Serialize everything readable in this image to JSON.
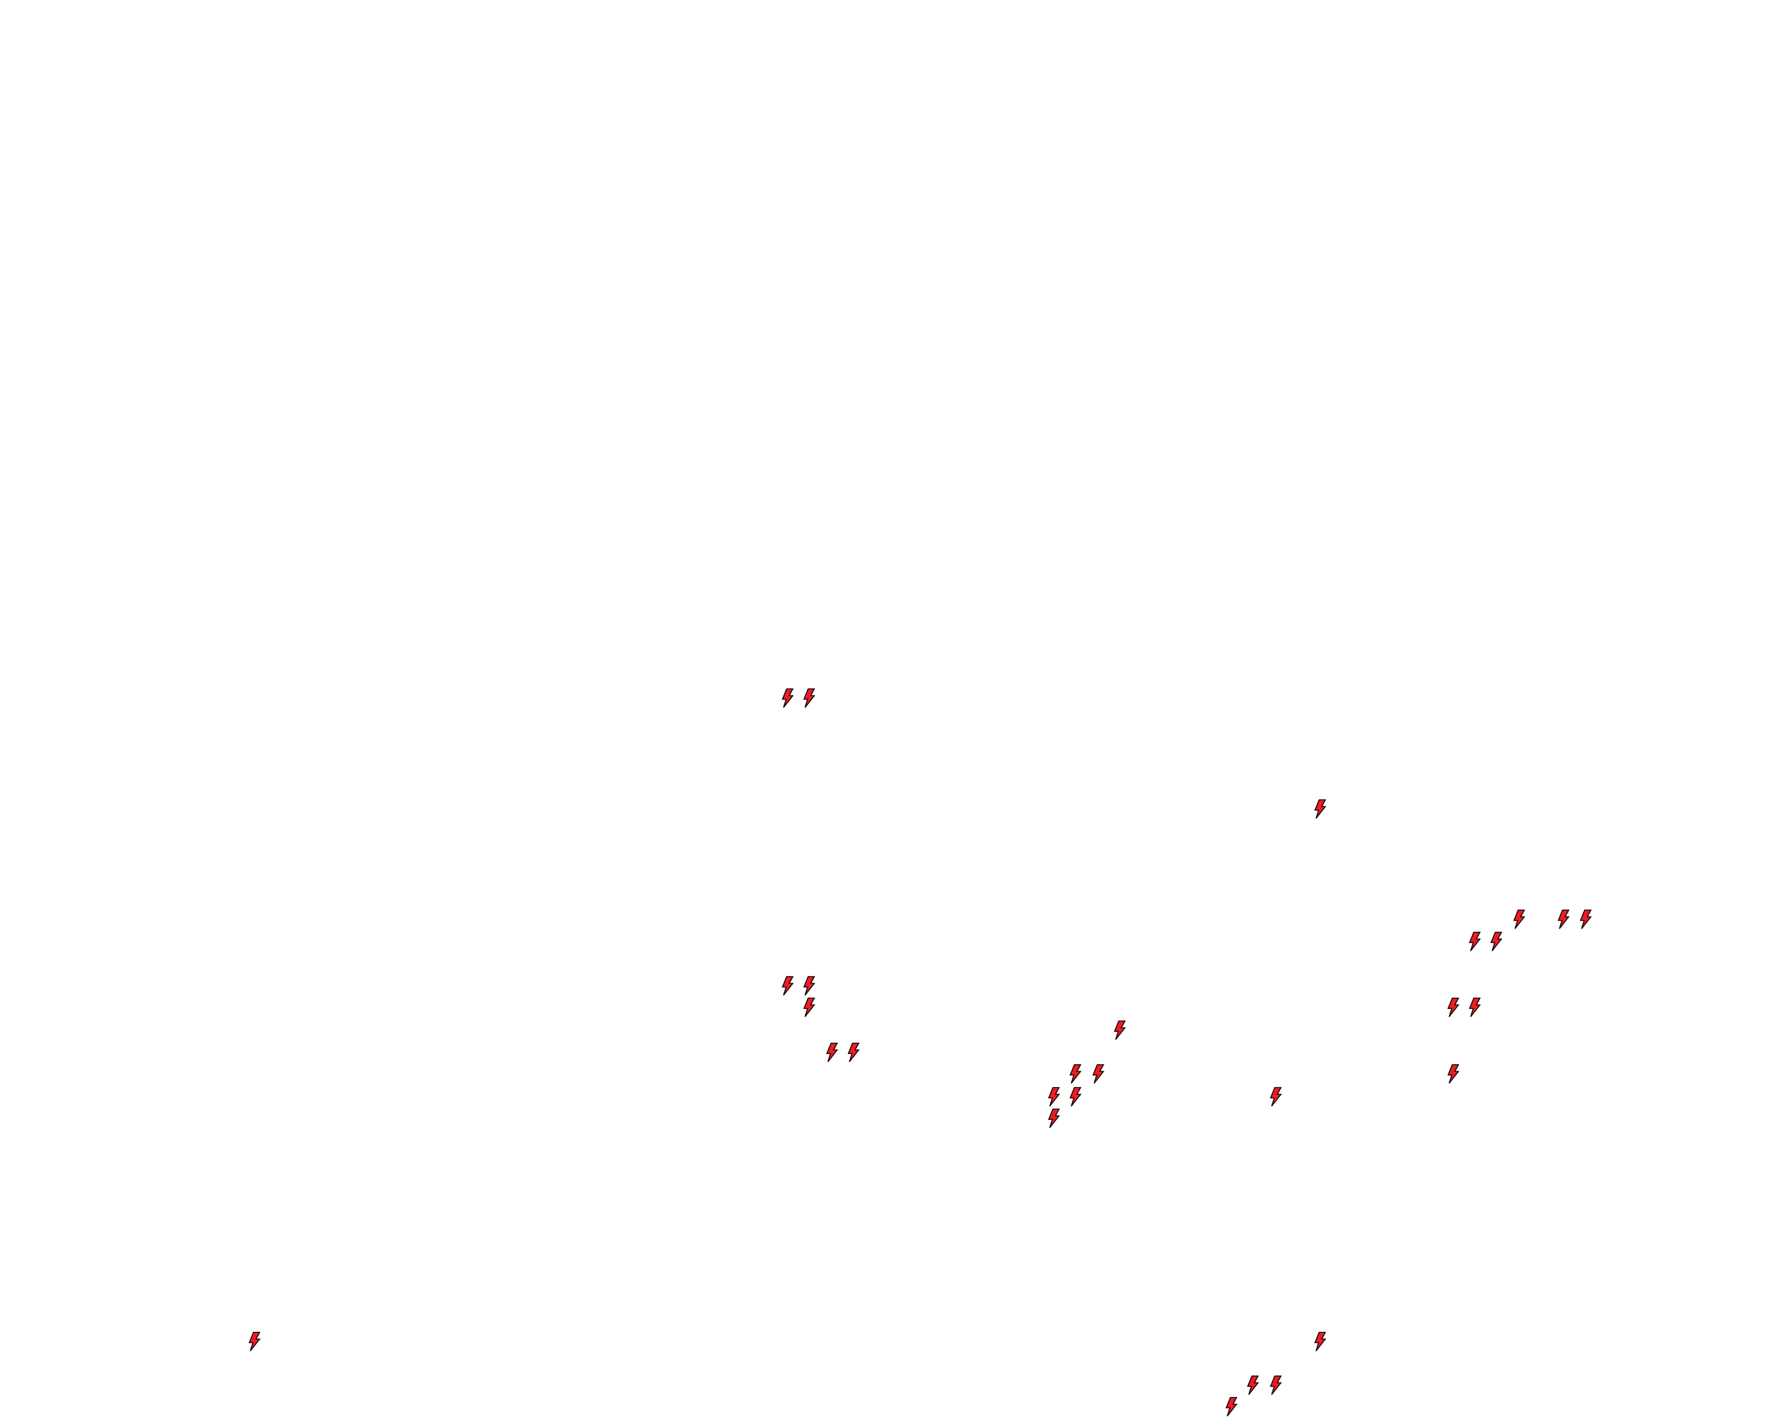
{
  "map": {
    "background_color": "#ffffff",
    "marker_icon": "lightning-bolt-icon",
    "marker_fill": "#ee1c24",
    "marker_stroke": "#000000",
    "marker_count": 30
  }
}
